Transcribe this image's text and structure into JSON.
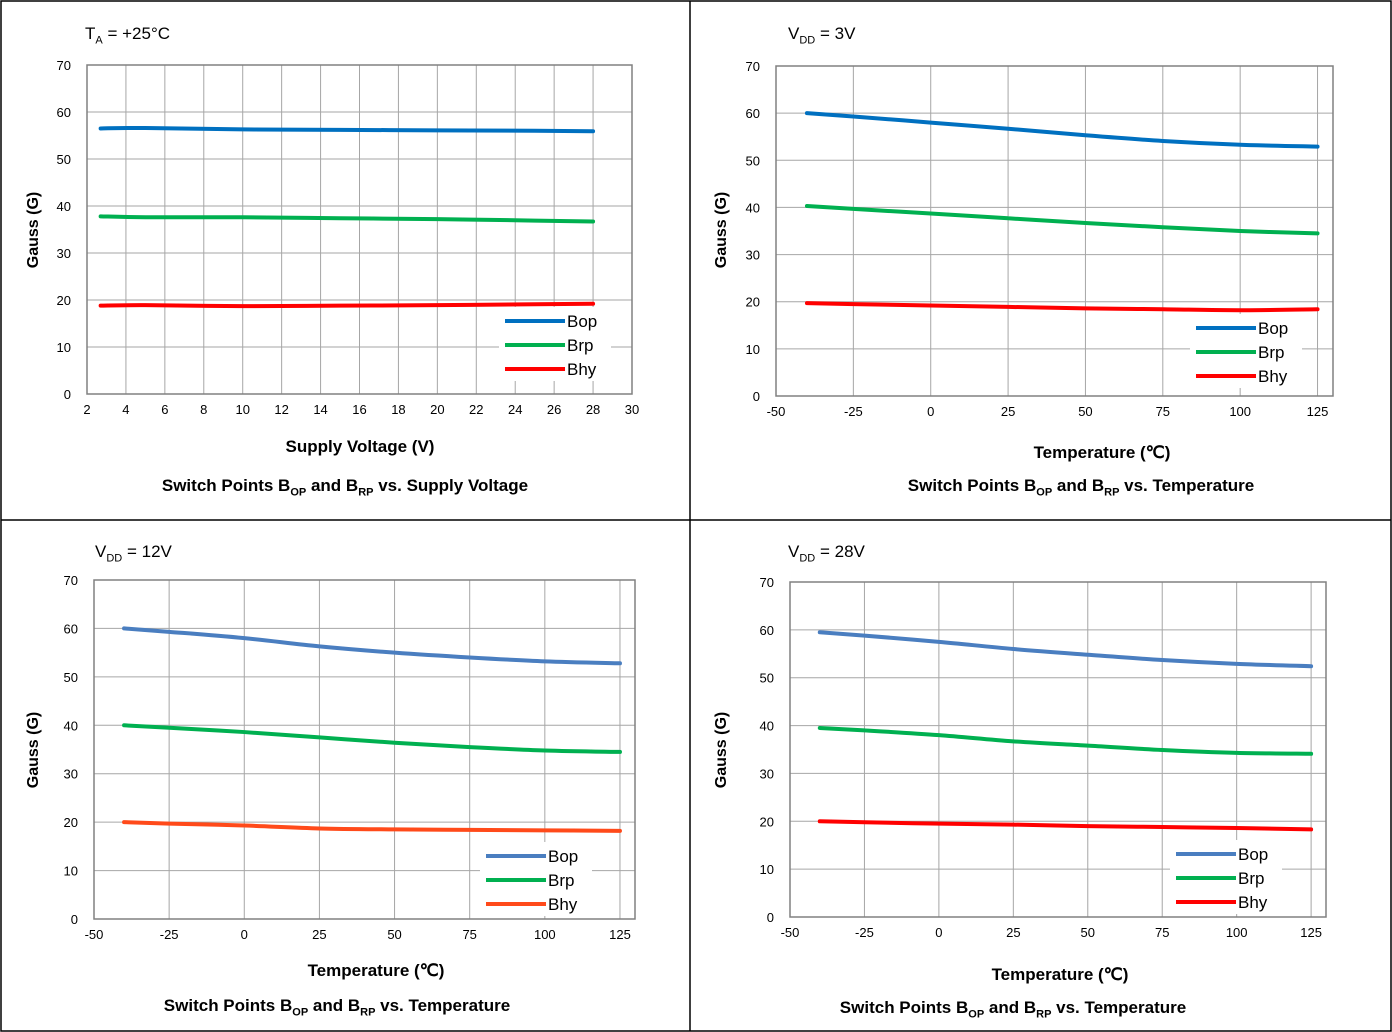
{
  "charts": [
    {
      "condition": {
        "symbol": "T",
        "sub": "A",
        "rest": " = +25°C"
      },
      "caption": {
        "pre": "Switch Points B",
        "sub1": "OP",
        "mid": " and B",
        "sub2": "RP",
        "post": " vs. Supply Voltage"
      },
      "chart_data": {
        "type": "line",
        "xlabel": "Supply Voltage (V)",
        "ylabel": "Gauss (G)",
        "xlim": [
          2,
          30
        ],
        "ylim": [
          0,
          70
        ],
        "xticks": [
          2,
          4,
          6,
          8,
          10,
          12,
          14,
          16,
          18,
          20,
          22,
          24,
          26,
          28,
          30
        ],
        "yticks": [
          0,
          10,
          20,
          30,
          40,
          50,
          60,
          70
        ],
        "grid": true,
        "legend": "bottom-right",
        "series": [
          {
            "name": "Bop",
            "color": "#0070C0",
            "x": [
              2.7,
              5,
              10,
              15,
              20,
              25,
              28
            ],
            "y": [
              56.5,
              56.6,
              56.3,
              56.2,
              56.1,
              56.0,
              55.9
            ]
          },
          {
            "name": "Brp",
            "color": "#00B050",
            "x": [
              2.7,
              5,
              10,
              15,
              20,
              25,
              28
            ],
            "y": [
              37.8,
              37.6,
              37.6,
              37.4,
              37.2,
              36.9,
              36.7
            ]
          },
          {
            "name": "Bhy",
            "color": "#FF0000",
            "x": [
              2.7,
              5,
              10,
              15,
              20,
              25,
              28
            ],
            "y": [
              18.8,
              18.9,
              18.7,
              18.8,
              18.9,
              19.1,
              19.2
            ]
          }
        ]
      }
    },
    {
      "condition": {
        "symbol": "V",
        "sub": "DD",
        "rest": " = 3V"
      },
      "caption": {
        "pre": "Switch Points B",
        "sub1": "OP",
        "mid": " and B",
        "sub2": "RP",
        "post": " vs. Temperature"
      },
      "chart_data": {
        "type": "line",
        "xlabel": "Temperature (℃)",
        "ylabel": "Gauss (G)",
        "xlim": [
          -50,
          130
        ],
        "ylim": [
          0,
          70
        ],
        "xticks": [
          -50,
          -25,
          0,
          25,
          50,
          75,
          100,
          125
        ],
        "yticks": [
          0,
          10,
          20,
          30,
          40,
          50,
          60,
          70
        ],
        "grid": true,
        "legend": "bottom-right",
        "series": [
          {
            "name": "Bop",
            "color": "#0070C0",
            "x": [
              -40,
              -25,
              0,
              25,
              50,
              75,
              100,
              125
            ],
            "y": [
              60.0,
              59.3,
              58.0,
              56.7,
              55.3,
              54.1,
              53.3,
              52.9
            ]
          },
          {
            "name": "Brp",
            "color": "#00B050",
            "x": [
              -40,
              -25,
              0,
              25,
              50,
              75,
              100,
              125
            ],
            "y": [
              40.3,
              39.7,
              38.7,
              37.7,
              36.7,
              35.8,
              35.0,
              34.5
            ]
          },
          {
            "name": "Bhy",
            "color": "#FF0000",
            "x": [
              -40,
              -25,
              0,
              25,
              50,
              75,
              100,
              125
            ],
            "y": [
              19.7,
              19.5,
              19.2,
              18.9,
              18.6,
              18.4,
              18.2,
              18.4
            ]
          }
        ]
      }
    },
    {
      "condition": {
        "symbol": "V",
        "sub": "DD",
        "rest": " = 12V"
      },
      "caption": {
        "pre": "Switch Points B",
        "sub1": "OP",
        "mid": " and B",
        "sub2": "RP",
        "post": " vs. Temperature"
      },
      "chart_data": {
        "type": "line",
        "xlabel": "Temperature (℃)",
        "ylabel": "Gauss (G)",
        "xlim": [
          -50,
          130
        ],
        "ylim": [
          0,
          70
        ],
        "xticks": [
          -50,
          -25,
          0,
          25,
          50,
          75,
          100,
          125
        ],
        "yticks": [
          0,
          10,
          20,
          30,
          40,
          50,
          60,
          70
        ],
        "grid": true,
        "legend": "bottom-right",
        "series": [
          {
            "name": "Bop",
            "color": "#4A7EC0",
            "x": [
              -40,
              -25,
              0,
              25,
              50,
              75,
              100,
              125
            ],
            "y": [
              60.0,
              59.3,
              58.0,
              56.3,
              55.0,
              54.0,
              53.2,
              52.8
            ]
          },
          {
            "name": "Brp",
            "color": "#00B050",
            "x": [
              -40,
              -25,
              0,
              25,
              50,
              75,
              100,
              125
            ],
            "y": [
              40.0,
              39.5,
              38.6,
              37.5,
              36.4,
              35.5,
              34.8,
              34.5
            ]
          },
          {
            "name": "Bhy",
            "color": "#FF4A1A",
            "x": [
              -40,
              -25,
              0,
              25,
              50,
              75,
              100,
              125
            ],
            "y": [
              20.0,
              19.7,
              19.3,
              18.7,
              18.5,
              18.4,
              18.3,
              18.2
            ]
          }
        ]
      }
    },
    {
      "condition": {
        "symbol": "V",
        "sub": "DD",
        "rest": " = 28V"
      },
      "caption": {
        "pre": "Switch Points B",
        "sub1": "OP",
        "mid": " and B",
        "sub2": "RP",
        "post": " vs. Temperature"
      },
      "chart_data": {
        "type": "line",
        "xlabel": "Temperature (℃)",
        "ylabel": "Gauss (G)",
        "xlim": [
          -50,
          130
        ],
        "ylim": [
          0,
          70
        ],
        "xticks": [
          -50,
          -25,
          0,
          25,
          50,
          75,
          100,
          125
        ],
        "yticks": [
          0,
          10,
          20,
          30,
          40,
          50,
          60,
          70
        ],
        "grid": true,
        "legend": "bottom-right",
        "series": [
          {
            "name": "Bop",
            "color": "#4A7EC0",
            "x": [
              -40,
              -25,
              0,
              25,
              50,
              75,
              100,
              125
            ],
            "y": [
              59.5,
              58.8,
              57.5,
              56.0,
              54.8,
              53.7,
              52.9,
              52.4
            ]
          },
          {
            "name": "Brp",
            "color": "#00B050",
            "x": [
              -40,
              -25,
              0,
              25,
              50,
              75,
              100,
              125
            ],
            "y": [
              39.5,
              39.0,
              38.0,
              36.7,
              35.8,
              34.9,
              34.3,
              34.1
            ]
          },
          {
            "name": "Bhy",
            "color": "#FF0000",
            "x": [
              -40,
              -25,
              0,
              25,
              50,
              75,
              100,
              125
            ],
            "y": [
              20.0,
              19.8,
              19.5,
              19.3,
              19.0,
              18.8,
              18.6,
              18.3
            ]
          }
        ]
      }
    }
  ]
}
